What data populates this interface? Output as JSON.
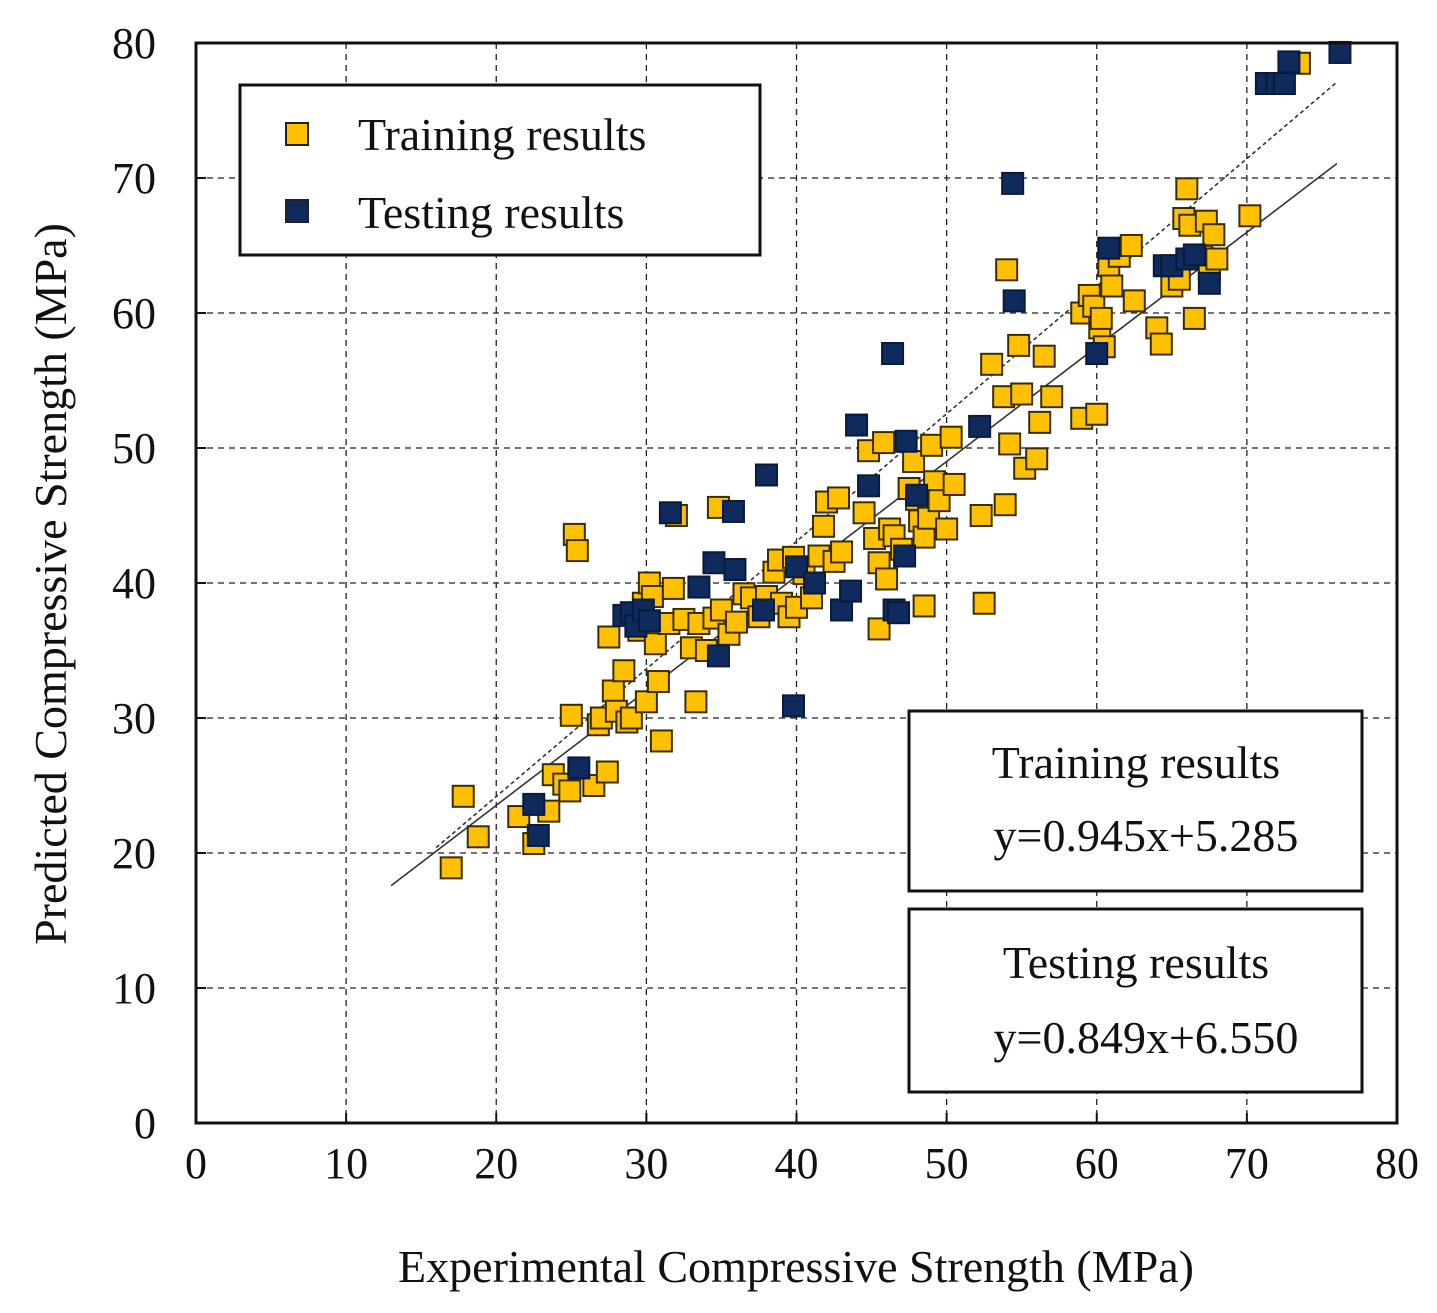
{
  "chart_data": {
    "type": "scatter",
    "title": "",
    "xlabel": "Experimental Compressive Strength (MPa)",
    "ylabel": "Predicted Compressive Strength (MPa)",
    "xlim": [
      0,
      80
    ],
    "ylim": [
      0,
      80
    ],
    "xticks": [
      0,
      10,
      20,
      30,
      40,
      50,
      60,
      70,
      80
    ],
    "yticks": [
      0,
      10,
      20,
      30,
      40,
      50,
      60,
      70,
      80
    ],
    "grid": true,
    "legend": {
      "placement": "top-left",
      "items": [
        {
          "label": "Training results",
          "series": 0
        },
        {
          "label": "Testing results",
          "series": 1
        }
      ]
    },
    "series": [
      {
        "name": "Training results",
        "color": "#FFC000",
        "points": [
          [
            17.0,
            18.9
          ],
          [
            17.8,
            24.2
          ],
          [
            18.8,
            21.2
          ],
          [
            21.5,
            22.7
          ],
          [
            22.5,
            20.7
          ],
          [
            23.5,
            23.1
          ],
          [
            23.8,
            25.8
          ],
          [
            24.5,
            25.1
          ],
          [
            24.9,
            24.6
          ],
          [
            25.0,
            30.2
          ],
          [
            25.2,
            43.6
          ],
          [
            25.4,
            42.4
          ],
          [
            26.5,
            25.0
          ],
          [
            26.8,
            29.5
          ],
          [
            27.0,
            30.0
          ],
          [
            27.4,
            26.0
          ],
          [
            27.5,
            36.0
          ],
          [
            27.8,
            32.0
          ],
          [
            28.0,
            30.5
          ],
          [
            28.5,
            33.5
          ],
          [
            28.7,
            29.7
          ],
          [
            29.0,
            30.0
          ],
          [
            29.5,
            36.5
          ],
          [
            29.8,
            38.5
          ],
          [
            30.0,
            31.2
          ],
          [
            30.2,
            40.0
          ],
          [
            30.4,
            39.0
          ],
          [
            30.6,
            35.5
          ],
          [
            30.8,
            32.7
          ],
          [
            31.0,
            28.3
          ],
          [
            31.5,
            37.0
          ],
          [
            31.8,
            39.6
          ],
          [
            32.0,
            45.0
          ],
          [
            32.5,
            37.3
          ],
          [
            33.0,
            35.2
          ],
          [
            33.3,
            31.2
          ],
          [
            33.5,
            37.0
          ],
          [
            34.0,
            35.0
          ],
          [
            34.5,
            37.4
          ],
          [
            34.8,
            45.6
          ],
          [
            35.0,
            38.0
          ],
          [
            35.5,
            36.2
          ],
          [
            36.0,
            37.1
          ],
          [
            36.5,
            39.2
          ],
          [
            37.0,
            38.9
          ],
          [
            37.5,
            37.5
          ],
          [
            38.0,
            39.0
          ],
          [
            38.5,
            40.8
          ],
          [
            38.8,
            41.7
          ],
          [
            39.0,
            38.5
          ],
          [
            39.5,
            37.5
          ],
          [
            39.8,
            41.9
          ],
          [
            40.0,
            38.2
          ],
          [
            40.5,
            40.7
          ],
          [
            41.0,
            38.9
          ],
          [
            41.5,
            42.0
          ],
          [
            41.8,
            44.2
          ],
          [
            42.0,
            46.0
          ],
          [
            42.5,
            41.6
          ],
          [
            42.8,
            46.3
          ],
          [
            43.0,
            42.3
          ],
          [
            44.5,
            45.2
          ],
          [
            44.8,
            49.8
          ],
          [
            45.2,
            43.3
          ],
          [
            45.5,
            36.6
          ],
          [
            45.5,
            41.5
          ],
          [
            45.8,
            50.4
          ],
          [
            46.0,
            40.3
          ],
          [
            46.2,
            44.0
          ],
          [
            46.5,
            43.5
          ],
          [
            47.0,
            42.5
          ],
          [
            47.5,
            47.0
          ],
          [
            47.8,
            49.0
          ],
          [
            48.0,
            46.2
          ],
          [
            48.2,
            44.6
          ],
          [
            48.5,
            38.3
          ],
          [
            48.5,
            43.4
          ],
          [
            48.8,
            44.8
          ],
          [
            49.0,
            50.2
          ],
          [
            49.2,
            47.5
          ],
          [
            49.5,
            46.1
          ],
          [
            50.0,
            44.0
          ],
          [
            50.3,
            50.8
          ],
          [
            50.5,
            47.3
          ],
          [
            52.3,
            45.0
          ],
          [
            52.5,
            38.5
          ],
          [
            53.0,
            56.2
          ],
          [
            53.8,
            53.8
          ],
          [
            53.9,
            45.8
          ],
          [
            54.0,
            63.2
          ],
          [
            54.2,
            50.3
          ],
          [
            54.8,
            57.6
          ],
          [
            55.0,
            54.0
          ],
          [
            55.2,
            48.5
          ],
          [
            56.0,
            49.2
          ],
          [
            56.2,
            51.9
          ],
          [
            56.5,
            56.8
          ],
          [
            57.0,
            53.8
          ],
          [
            59.0,
            52.2
          ],
          [
            59.0,
            60.0
          ],
          [
            59.5,
            61.3
          ],
          [
            59.8,
            60.5
          ],
          [
            60.0,
            52.5
          ],
          [
            60.2,
            58.9
          ],
          [
            60.3,
            59.6
          ],
          [
            60.5,
            57.5
          ],
          [
            60.8,
            63.5
          ],
          [
            61.0,
            62.0
          ],
          [
            61.5,
            64.2
          ],
          [
            62.3,
            65.0
          ],
          [
            62.5,
            60.9
          ],
          [
            64.0,
            58.9
          ],
          [
            64.3,
            57.7
          ],
          [
            65.0,
            62.0
          ],
          [
            65.5,
            62.5
          ],
          [
            65.8,
            67.0
          ],
          [
            66.0,
            69.2
          ],
          [
            66.2,
            66.5
          ],
          [
            66.5,
            59.6
          ],
          [
            67.0,
            64.2
          ],
          [
            67.3,
            66.8
          ],
          [
            67.5,
            63.2
          ],
          [
            67.8,
            65.8
          ],
          [
            68.0,
            64.0
          ],
          [
            70.2,
            67.2
          ],
          [
            73.5,
            78.5
          ]
        ]
      },
      {
        "name": "Testing results",
        "color": "#0F2B5E",
        "points": [
          [
            22.5,
            23.6
          ],
          [
            22.8,
            21.3
          ],
          [
            25.5,
            26.3
          ],
          [
            28.5,
            37.6
          ],
          [
            29.0,
            37.8
          ],
          [
            29.3,
            36.8
          ],
          [
            29.8,
            38.0
          ],
          [
            30.2,
            37.2
          ],
          [
            31.6,
            45.2
          ],
          [
            33.5,
            39.7
          ],
          [
            34.5,
            41.5
          ],
          [
            34.8,
            34.6
          ],
          [
            35.8,
            45.3
          ],
          [
            35.9,
            41.0
          ],
          [
            37.8,
            38.0
          ],
          [
            38.0,
            48.0
          ],
          [
            39.8,
            30.9
          ],
          [
            40.0,
            41.2
          ],
          [
            41.2,
            40.0
          ],
          [
            43.0,
            38.0
          ],
          [
            43.6,
            39.4
          ],
          [
            44.0,
            51.7
          ],
          [
            44.8,
            47.2
          ],
          [
            46.4,
            57.0
          ],
          [
            46.5,
            38.0
          ],
          [
            46.8,
            37.8
          ],
          [
            47.2,
            42.0
          ],
          [
            47.3,
            50.5
          ],
          [
            48.0,
            46.5
          ],
          [
            52.2,
            51.6
          ],
          [
            54.4,
            69.6
          ],
          [
            54.5,
            60.9
          ],
          [
            60.0,
            57.0
          ],
          [
            60.8,
            64.8
          ],
          [
            64.5,
            63.5
          ],
          [
            65.0,
            63.5
          ],
          [
            66.0,
            64.0
          ],
          [
            66.5,
            64.3
          ],
          [
            67.5,
            62.2
          ],
          [
            71.3,
            77.0
          ],
          [
            72.0,
            77.0
          ],
          [
            72.5,
            77.0
          ],
          [
            72.8,
            78.6
          ],
          [
            76.2,
            79.3
          ]
        ]
      }
    ],
    "fit_lines": [
      {
        "series": "Training results",
        "slope": 0.945,
        "intercept": 5.285,
        "x_range": [
          16,
          76
        ],
        "style": "dashed"
      },
      {
        "series": "Testing results",
        "slope": 0.849,
        "intercept": 6.55,
        "x_range": [
          13,
          76
        ],
        "style": "solid"
      }
    ],
    "annotations": [
      {
        "title": "Training results",
        "equation": "y=0.945x+5.285"
      },
      {
        "title": "Testing results",
        "equation": "y=0.849x+6.550"
      }
    ]
  }
}
